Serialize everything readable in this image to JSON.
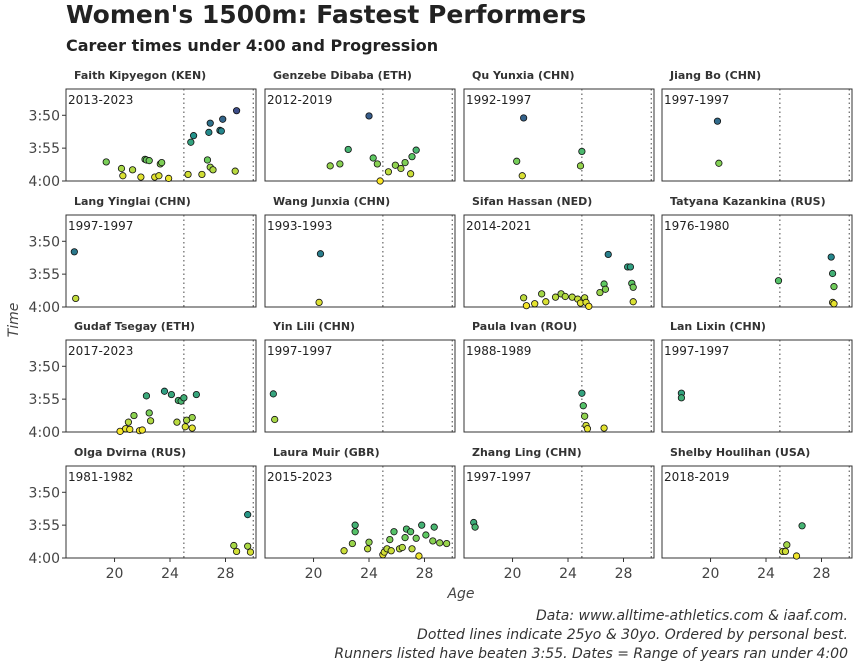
{
  "title": "Women's 1500m: Fastest Performers",
  "subtitle": "Career times under 4:00 and Progression",
  "xlabel": "Age",
  "ylabel": "Time",
  "caption": [
    "Data: www.alltime-athletics.com & iaaf.com.",
    "Dotted lines indicate 25yo & 30yo. Ordered by personal best.",
    "Runners listed have beaten 3:55. Dates = Range of years ran under 4:00"
  ],
  "chart_data": {
    "type": "scatter",
    "facet_layout": "4x4",
    "x_ticks": [
      20,
      24,
      28
    ],
    "xlim": [
      16.5,
      30.2
    ],
    "y_ticks": [
      {
        "seconds": 230,
        "label": "3:50"
      },
      {
        "seconds": 235,
        "label": "3:55"
      },
      {
        "seconds": 240,
        "label": "4:00"
      }
    ],
    "ylim_seconds": [
      226,
      240
    ],
    "reference_lines_age": [
      25,
      30
    ],
    "color_scale": "viridis (fast = purple, slow = yellow)",
    "colors": [
      "#440154",
      "#3b528b",
      "#21918c",
      "#5ec962",
      "#fde725"
    ],
    "panels": [
      {
        "athlete": "Faith Kipyegon (KEN)",
        "years": "2013-2023",
        "points": [
          [
            19.4,
            237.1
          ],
          [
            20.5,
            238.1
          ],
          [
            20.6,
            239.2
          ],
          [
            21.3,
            238.3
          ],
          [
            21.9,
            239.4
          ],
          [
            22.2,
            236.7
          ],
          [
            22.3,
            236.8
          ],
          [
            22.5,
            236.9
          ],
          [
            22.9,
            239.4
          ],
          [
            23.2,
            239.2
          ],
          [
            23.3,
            237.4
          ],
          [
            23.4,
            237.2
          ],
          [
            23.9,
            239.6
          ],
          [
            25.3,
            239.0
          ],
          [
            25.5,
            234.1
          ],
          [
            25.7,
            233.1
          ],
          [
            26.3,
            239.0
          ],
          [
            26.7,
            236.8
          ],
          [
            26.8,
            232.6
          ],
          [
            26.9,
            237.9
          ],
          [
            26.9,
            231.2
          ],
          [
            27.1,
            238.3
          ],
          [
            27.6,
            232.3
          ],
          [
            27.7,
            232.4
          ],
          [
            27.8,
            230.6
          ],
          [
            28.7,
            238.5
          ],
          [
            28.8,
            229.3
          ]
        ]
      },
      {
        "athlete": "Genzebe Dibaba (ETH)",
        "years": "2012-2019",
        "points": [
          [
            21.2,
            237.7
          ],
          [
            21.9,
            237.4
          ],
          [
            22.5,
            235.2
          ],
          [
            24.0,
            230.1
          ],
          [
            24.3,
            236.5
          ],
          [
            24.6,
            237.4
          ],
          [
            24.8,
            240.0
          ],
          [
            25.4,
            238.6
          ],
          [
            25.9,
            237.6
          ],
          [
            26.3,
            238.1
          ],
          [
            26.6,
            237.2
          ],
          [
            27.0,
            238.9
          ],
          [
            27.1,
            236.3
          ],
          [
            27.4,
            235.3
          ]
        ]
      },
      {
        "athlete": "Qu Yunxia (CHN)",
        "years": "1992-1997",
        "points": [
          [
            20.3,
            237.0
          ],
          [
            20.7,
            239.2
          ],
          [
            20.8,
            230.4
          ],
          [
            24.9,
            237.7
          ],
          [
            25.0,
            235.5
          ]
        ]
      },
      {
        "athlete": "Jiang Bo (CHN)",
        "years": "1997-1997",
        "points": [
          [
            20.5,
            230.9
          ],
          [
            20.6,
            237.3
          ]
        ]
      },
      {
        "athlete": "Lang Yinglai (CHN)",
        "years": "1997-1997",
        "points": [
          [
            17.1,
            231.6
          ],
          [
            17.2,
            238.7
          ]
        ]
      },
      {
        "athlete": "Wang Junxia (CHN)",
        "years": "1993-1993",
        "points": [
          [
            20.5,
            231.9
          ],
          [
            20.4,
            239.3
          ]
        ]
      },
      {
        "athlete": "Sifan Hassan (NED)",
        "years": "2014-2021",
        "points": [
          [
            20.8,
            238.6
          ],
          [
            21.0,
            239.8
          ],
          [
            21.6,
            239.5
          ],
          [
            22.1,
            238.0
          ],
          [
            22.4,
            239.2
          ],
          [
            23.1,
            238.5
          ],
          [
            23.5,
            238.0
          ],
          [
            23.8,
            238.4
          ],
          [
            24.3,
            238.5
          ],
          [
            24.7,
            238.8
          ],
          [
            24.9,
            239.4
          ],
          [
            25.2,
            238.6
          ],
          [
            25.3,
            239.3
          ],
          [
            25.5,
            239.9
          ],
          [
            26.3,
            237.8
          ],
          [
            26.6,
            236.5
          ],
          [
            26.7,
            237.3
          ],
          [
            26.9,
            232.0
          ],
          [
            28.3,
            233.9
          ],
          [
            28.5,
            233.9
          ],
          [
            28.6,
            236.4
          ],
          [
            28.7,
            237.0
          ],
          [
            28.7,
            239.2
          ]
        ]
      },
      {
        "athlete": "Tatyana Kazankina (RUS)",
        "years": "1976-1980",
        "points": [
          [
            24.9,
            236.0
          ],
          [
            28.7,
            232.4
          ],
          [
            28.8,
            234.9
          ],
          [
            28.9,
            236.9
          ],
          [
            28.8,
            239.3
          ],
          [
            28.9,
            239.5
          ]
        ]
      },
      {
        "athlete": "Gudaf Tsegay (ETH)",
        "years": "2017-2023",
        "points": [
          [
            20.4,
            239.9
          ],
          [
            20.8,
            239.5
          ],
          [
            21.0,
            238.5
          ],
          [
            21.1,
            239.6
          ],
          [
            21.4,
            237.5
          ],
          [
            21.8,
            239.8
          ],
          [
            22.0,
            239.7
          ],
          [
            22.3,
            234.5
          ],
          [
            22.5,
            237.1
          ],
          [
            22.6,
            238.3
          ],
          [
            23.6,
            233.8
          ],
          [
            24.1,
            234.3
          ],
          [
            24.5,
            238.5
          ],
          [
            24.6,
            235.2
          ],
          [
            24.8,
            235.3
          ],
          [
            25.1,
            239.2
          ],
          [
            25.0,
            234.8
          ],
          [
            25.2,
            238.2
          ],
          [
            25.6,
            239.4
          ],
          [
            25.6,
            237.8
          ],
          [
            25.9,
            234.3
          ]
        ]
      },
      {
        "athlete": "Yin Lili (CHN)",
        "years": "1997-1997",
        "points": [
          [
            17.1,
            234.2
          ],
          [
            17.2,
            238.1
          ]
        ]
      },
      {
        "athlete": "Paula Ivan (ROU)",
        "years": "1988-1989",
        "points": [
          [
            25.0,
            234.1
          ],
          [
            25.1,
            236.0
          ],
          [
            25.2,
            237.6
          ],
          [
            25.3,
            239.0
          ],
          [
            25.4,
            239.5
          ],
          [
            26.6,
            239.4
          ]
        ]
      },
      {
        "athlete": "Lan Lixin (CHN)",
        "years": "1997-1997",
        "points": [
          [
            17.9,
            234.1
          ],
          [
            17.9,
            234.8
          ]
        ]
      },
      {
        "athlete": "Olga Dvirna (RUS)",
        "years": "1981-1982",
        "points": [
          [
            28.6,
            238.1
          ],
          [
            28.8,
            239.0
          ],
          [
            29.6,
            233.4
          ],
          [
            29.6,
            238.2
          ],
          [
            29.8,
            239.1
          ]
        ]
      },
      {
        "athlete": "Laura Muir (GBR)",
        "years": "2015-2023",
        "points": [
          [
            22.2,
            238.9
          ],
          [
            22.8,
            237.8
          ],
          [
            23.0,
            235.0
          ],
          [
            23.0,
            236.0
          ],
          [
            23.9,
            238.6
          ],
          [
            24.0,
            237.6
          ],
          [
            25.0,
            239.5
          ],
          [
            25.1,
            239.1
          ],
          [
            25.3,
            238.6
          ],
          [
            25.5,
            237.2
          ],
          [
            25.6,
            238.9
          ],
          [
            25.8,
            236.0
          ],
          [
            26.2,
            238.6
          ],
          [
            26.4,
            238.4
          ],
          [
            26.6,
            236.9
          ],
          [
            26.7,
            235.6
          ],
          [
            27.0,
            236.0
          ],
          [
            27.1,
            238.6
          ],
          [
            27.4,
            237.0
          ],
          [
            27.6,
            239.7
          ],
          [
            27.8,
            235.0
          ],
          [
            28.1,
            236.5
          ],
          [
            28.6,
            237.4
          ],
          [
            28.7,
            235.3
          ],
          [
            29.1,
            237.7
          ],
          [
            29.6,
            237.8
          ]
        ]
      },
      {
        "athlete": "Zhang Ling (CHN)",
        "years": "1997-1997",
        "points": [
          [
            17.2,
            234.6
          ],
          [
            17.3,
            235.3
          ]
        ]
      },
      {
        "athlete": "Shelby Houlihan (USA)",
        "years": "2018-2019",
        "points": [
          [
            25.2,
            239.0
          ],
          [
            25.4,
            239.0
          ],
          [
            25.5,
            238.0
          ],
          [
            26.2,
            239.7
          ],
          [
            26.6,
            235.1
          ]
        ]
      }
    ]
  }
}
